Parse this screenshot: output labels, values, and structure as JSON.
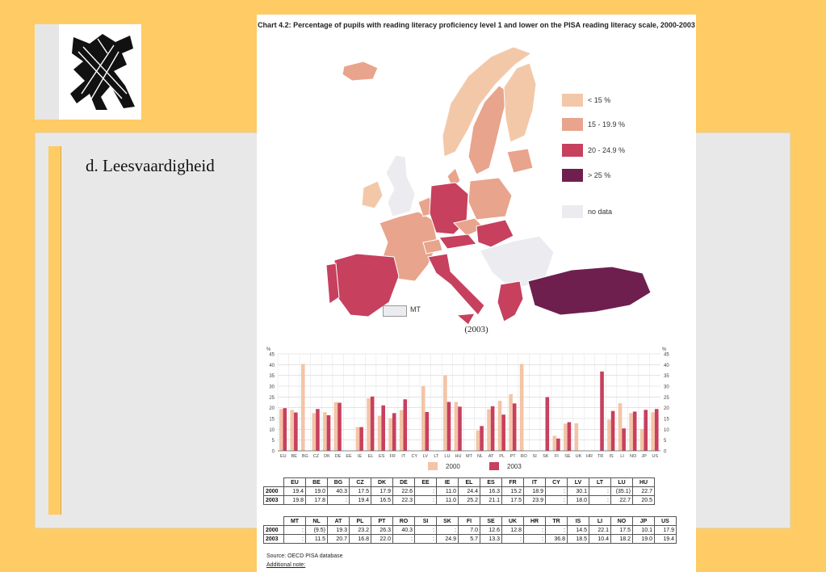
{
  "slide": {
    "heading": "d. Leesvaardigheid"
  },
  "colors": {
    "background": "#FECB65",
    "panel": "#E8E8E8",
    "bar_2000": "#F3C4A6",
    "bar_2003": "#C7405E",
    "map_lt15": "#F3C8A8",
    "map_15_20": "#E8A48C",
    "map_20_25": "#C7405E",
    "map_gt25": "#6E1F4E",
    "map_nodata": "#ECECF0"
  },
  "figure": {
    "title": "Chart 4.2: Percentage of pupils with reading literacy proficiency level 1 and lower on the PISA reading literacy scale, 2000-2003",
    "map_legend": [
      "< 15 %",
      "15 - 19.9 %",
      "20 - 24.9 %",
      "> 25 %",
      "no data"
    ],
    "mt_label": "MT",
    "map_caption": "(2003)",
    "source": "Source: OECD PISA database",
    "additional_note": "Additional note:"
  },
  "chart_data": {
    "type": "bar",
    "categories": [
      "EU",
      "BE",
      "BG",
      "CZ",
      "DK",
      "DE",
      "EE",
      "IE",
      "EL",
      "ES",
      "FR",
      "IT",
      "CY",
      "LV",
      "LT",
      "LU",
      "HU",
      "MT",
      "NL",
      "AT",
      "PL",
      "PT",
      "RO",
      "SI",
      "SK",
      "FI",
      "SE",
      "UK",
      "HR",
      "TR",
      "IS",
      "LI",
      "NO",
      "JP",
      "US"
    ],
    "series": [
      {
        "name": "2000",
        "values": [
          19.4,
          19.0,
          40.3,
          17.5,
          17.9,
          22.6,
          null,
          11.0,
          24.4,
          16.3,
          15.2,
          18.9,
          null,
          30.1,
          null,
          35.1,
          22.7,
          null,
          9.5,
          19.3,
          23.2,
          26.3,
          40.3,
          null,
          null,
          7.0,
          12.6,
          12.8,
          null,
          null,
          14.5,
          22.1,
          17.5,
          10.1,
          17.9
        ]
      },
      {
        "name": "2003",
        "values": [
          19.8,
          17.8,
          null,
          19.4,
          16.5,
          22.3,
          null,
          11.0,
          25.2,
          21.1,
          17.5,
          23.9,
          null,
          18.0,
          null,
          22.7,
          20.5,
          null,
          11.5,
          20.7,
          16.8,
          22.0,
          null,
          null,
          24.9,
          5.7,
          13.3,
          null,
          null,
          36.8,
          18.5,
          10.4,
          18.2,
          19.0,
          19.4
        ]
      }
    ],
    "ylabel": "%",
    "ylim": [
      0,
      45
    ],
    "yticks": [
      0,
      5,
      10,
      15,
      20,
      25,
      30,
      35,
      40,
      45
    ],
    "legend": [
      "2000",
      "2003"
    ],
    "table_row1": {
      "columns": [
        "EU",
        "BE",
        "BG",
        "CZ",
        "DK",
        "DE",
        "EE",
        "IE",
        "EL",
        "ES",
        "FR",
        "IT",
        "CY",
        "LV",
        "LT",
        "LU",
        "HU"
      ],
      "rows": [
        {
          "label": "2000",
          "cells": [
            "19.4",
            "19.0",
            "40.3",
            "17.5",
            "17.9",
            "22.6",
            ":",
            "11.0",
            "24.4",
            "16.3",
            "15.2",
            "18.9",
            ":",
            "30.1",
            ":",
            "(35.1)",
            "22.7"
          ]
        },
        {
          "label": "2003",
          "cells": [
            "19.8",
            "17.8",
            ":",
            "19.4",
            "16.5",
            "22.3",
            ":",
            "11.0",
            "25.2",
            "21.1",
            "17.5",
            "23.9",
            ":",
            "18.0",
            ":",
            "22.7",
            "20.5"
          ]
        }
      ]
    },
    "table_row2": {
      "columns": [
        "MT",
        "NL",
        "AT",
        "PL",
        "PT",
        "RO",
        "SI",
        "SK",
        "FI",
        "SE",
        "UK",
        "HR",
        "TR",
        "IS",
        "LI",
        "NO",
        "JP",
        "US"
      ],
      "rows": [
        {
          "label": "2000",
          "cells": [
            ":",
            "(9.5)",
            "19.3",
            "23.2",
            "26.3",
            "40.3",
            ":",
            ":",
            "7.0",
            "12.6",
            "12.8",
            ":",
            ":",
            "14.5",
            "22.1",
            "17.5",
            "10.1",
            "17.9"
          ]
        },
        {
          "label": "2003",
          "cells": [
            ":",
            "11.5",
            "20.7",
            "16.8",
            "22.0",
            ":",
            ":",
            "24.9",
            "5.7",
            "13.3",
            ":",
            ":",
            "36.8",
            "18.5",
            "10.4",
            "18.2",
            "19.0",
            "19.4"
          ]
        }
      ]
    }
  }
}
